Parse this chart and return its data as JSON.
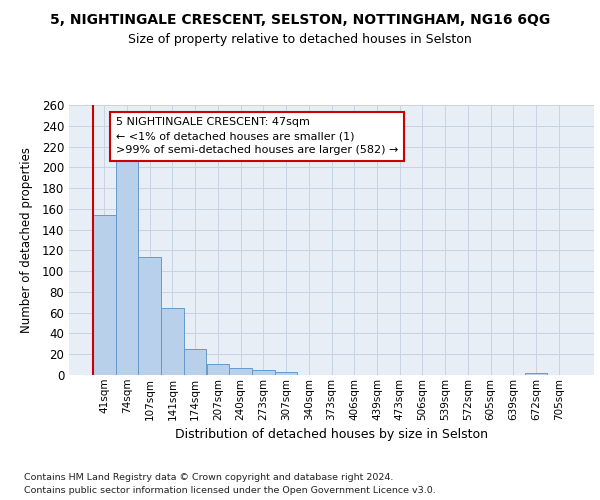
{
  "title": "5, NIGHTINGALE CRESCENT, SELSTON, NOTTINGHAM, NG16 6QG",
  "subtitle": "Size of property relative to detached houses in Selston",
  "xlabel": "Distribution of detached houses by size in Selston",
  "ylabel": "Number of detached properties",
  "categories": [
    "41sqm",
    "74sqm",
    "107sqm",
    "141sqm",
    "174sqm",
    "207sqm",
    "240sqm",
    "273sqm",
    "307sqm",
    "340sqm",
    "373sqm",
    "406sqm",
    "439sqm",
    "473sqm",
    "506sqm",
    "539sqm",
    "572sqm",
    "605sqm",
    "639sqm",
    "672sqm",
    "705sqm"
  ],
  "values": [
    154,
    209,
    114,
    65,
    25,
    11,
    7,
    5,
    3,
    0,
    0,
    0,
    0,
    0,
    0,
    0,
    0,
    0,
    0,
    2,
    0
  ],
  "bar_color": "#b8d0ea",
  "bar_edge_color": "#6699cc",
  "grid_color": "#c8d4e4",
  "background_color": "#e8eef6",
  "annotation_line1": "5 NIGHTINGALE CRESCENT: 47sqm",
  "annotation_line2": "← <1% of detached houses are smaller (1)",
  "annotation_line3": ">99% of semi-detached houses are larger (582) →",
  "annotation_box_color": "#ffffff",
  "annotation_box_edge_color": "#cc0000",
  "marker_line_color": "#cc0000",
  "ylim": [
    0,
    260
  ],
  "yticks": [
    0,
    20,
    40,
    60,
    80,
    100,
    120,
    140,
    160,
    180,
    200,
    220,
    240,
    260
  ],
  "footer_line1": "Contains HM Land Registry data © Crown copyright and database right 2024.",
  "footer_line2": "Contains public sector information licensed under the Open Government Licence v3.0."
}
